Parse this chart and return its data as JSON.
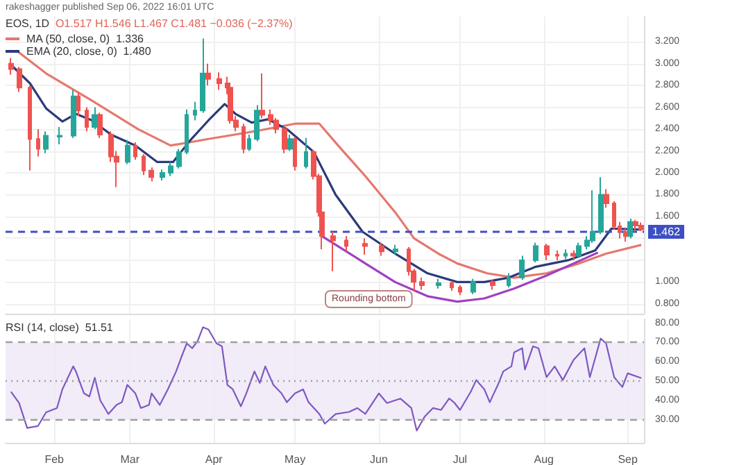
{
  "chart_data": [
    {
      "type": "candlestick",
      "title": "EOS, 1D",
      "subtitle": "O1.517 H1.546 L1.467 C1.481 −0.036 (−2.37%)",
      "annotations": [
        "rakeshagger published Sep 06, 2022 16:01 UTC",
        "Rounding bottom"
      ],
      "xlim": [
        "2022-01-14",
        "2022-09-07"
      ],
      "xticks": [
        {
          "value": "2022-02-01",
          "label": null
        },
        {
          "value": "2022-03-01",
          "label": null
        },
        {
          "value": "2022-04-01",
          "label": null
        },
        {
          "value": "2022-05-01",
          "label": null
        },
        {
          "value": "2022-06-01",
          "label": null
        },
        {
          "value": "2022-07-01",
          "label": null
        },
        {
          "value": "2022-08-01",
          "label": null
        },
        {
          "value": "2022-09-01",
          "label": null
        }
      ],
      "ylim": [
        0.71,
        3.43
      ],
      "yticks": [
        {
          "value": 0.8,
          "label": "0.800"
        },
        {
          "value": 1.0,
          "label": "1.000"
        },
        {
          "value": 1.2,
          "label": null
        },
        {
          "value": 1.4,
          "label": null
        },
        {
          "value": 1.6,
          "label": "1.600"
        },
        {
          "value": 1.8,
          "label": "1.800"
        },
        {
          "value": 2.0,
          "label": "2.000"
        },
        {
          "value": 2.2,
          "label": "2.200"
        },
        {
          "value": 2.4,
          "label": "2.400"
        },
        {
          "value": 2.6,
          "label": "2.600"
        },
        {
          "value": 2.8,
          "label": "2.800"
        },
        {
          "value": 3.0,
          "label": "3.000"
        },
        {
          "value": 3.2,
          "label": "3.200"
        }
      ],
      "tick_labels": "y",
      "grid": true,
      "legend": "top left",
      "ref_lines": [
        {
          "axis": "y",
          "value": 1.462,
          "label": "1.462",
          "color": "#3d4fc4",
          "line_style": "dashed"
        }
      ],
      "series": [
        {
          "colors": [
            "#ef5350",
            "#ef5350",
            "#ef5350",
            "#ef5350",
            "#26a69a",
            "#26a69a",
            "#26a69a",
            "#ef5350",
            "#ef5350",
            "#26a69a",
            "#ef5350",
            "#ef5350",
            "#ef5350",
            "#26a69a",
            "#ef5350",
            "#ef5350",
            "#ef5350",
            "#26a69a",
            "#26a69a",
            "#26a69a",
            "#26a69a",
            "#26a69a",
            "#26a69a",
            "#ef5350",
            "#ef5350",
            "#ef5350",
            "#ef5350",
            "#ef5350",
            "#ef5350",
            "#26a69a",
            "#26a69a",
            "#ef5350",
            "#ef5350",
            "#ef5350",
            "#ef5350",
            "#26a69a",
            "#ef5350",
            "#26a69a",
            "#ef5350",
            "#ef5350",
            "#ef5350",
            "#ef5350",
            "#ef5350",
            "#ef5350",
            "#ef5350",
            "#26a69a",
            "#ef5350",
            "#ef5350",
            "#ef5350",
            "#26a69a",
            "#ef5350",
            "#ef5350",
            "#26a69a",
            "#ef5350",
            "#26a69a",
            "#26a69a",
            "#26a69a",
            "#ef5350",
            "#ef5350",
            "#26a69a",
            "#ef5350",
            "#26a69a",
            "#26a69a",
            "#26a69a",
            "#26a69a",
            "#ef5350",
            "#ef5350",
            "#ef5350",
            "#ef5350",
            "#26a69a",
            "#ef5350",
            "#ef5350"
          ],
          "x": [
            "2022-01-16",
            "2022-01-19",
            "2022-01-23",
            "2022-01-26",
            "2022-01-29",
            "2022-02-03",
            "2022-02-08",
            "2022-02-10",
            "2022-02-13",
            "2022-02-16",
            "2022-02-18",
            "2022-02-22",
            "2022-02-24",
            "2022-02-28",
            "2022-03-03",
            "2022-03-06",
            "2022-03-09",
            "2022-03-13",
            "2022-03-16",
            "2022-03-19",
            "2022-03-22",
            "2022-03-25",
            "2022-03-28",
            "2022-03-30",
            "2022-04-03",
            "2022-04-06",
            "2022-04-07",
            "2022-04-09",
            "2022-04-12",
            "2022-04-14",
            "2022-04-17",
            "2022-04-19",
            "2022-04-22",
            "2022-04-24",
            "2022-04-27",
            "2022-04-29",
            "2022-05-01",
            "2022-05-05",
            "2022-05-08",
            "2022-05-10",
            "2022-05-11",
            "2022-05-15",
            "2022-05-20",
            "2022-05-27",
            "2022-06-02",
            "2022-06-07",
            "2022-06-12",
            "2022-06-14",
            "2022-06-17",
            "2022-06-23",
            "2022-06-28",
            "2022-07-01",
            "2022-07-06",
            "2022-07-13",
            "2022-07-19",
            "2022-07-24",
            "2022-07-29",
            "2022-08-02",
            "2022-08-06",
            "2022-08-09",
            "2022-08-12",
            "2022-08-14",
            "2022-08-17",
            "2022-08-19",
            "2022-08-22",
            "2022-08-24",
            "2022-08-27",
            "2022-08-29",
            "2022-08-31",
            "2022-09-02",
            "2022-09-04",
            "2022-09-06"
          ],
          "ohlc": [
            [
              3.0,
              3.05,
              2.9,
              2.95
            ],
            [
              2.95,
              2.97,
              2.74,
              2.78
            ],
            [
              2.78,
              2.8,
              2.02,
              2.31
            ],
            [
              2.31,
              2.4,
              2.15,
              2.22
            ],
            [
              2.22,
              2.38,
              2.18,
              2.34
            ],
            [
              2.33,
              2.42,
              2.26,
              2.34
            ],
            [
              2.34,
              2.76,
              2.32,
              2.7
            ],
            [
              2.7,
              2.74,
              2.52,
              2.57
            ],
            [
              2.57,
              2.6,
              2.38,
              2.42
            ],
            [
              2.42,
              2.6,
              2.4,
              2.53
            ],
            [
              2.53,
              2.55,
              2.32,
              2.35
            ],
            [
              2.35,
              2.38,
              2.1,
              2.15
            ],
            [
              2.15,
              2.2,
              1.87,
              2.1
            ],
            [
              2.1,
              2.3,
              2.08,
              2.25
            ],
            [
              2.25,
              2.28,
              2.12,
              2.15
            ],
            [
              2.15,
              2.17,
              1.98,
              2.02
            ],
            [
              2.02,
              2.05,
              1.92,
              1.96
            ],
            [
              1.96,
              2.03,
              1.93,
              2.0
            ],
            [
              2.0,
              2.1,
              1.97,
              2.06
            ],
            [
              2.06,
              2.22,
              2.04,
              2.19
            ],
            [
              2.19,
              2.58,
              2.17,
              2.53
            ],
            [
              2.53,
              2.65,
              2.48,
              2.57
            ],
            [
              2.57,
              3.23,
              2.55,
              2.91
            ],
            [
              2.91,
              3.0,
              2.8,
              2.86
            ],
            [
              2.86,
              2.92,
              2.76,
              2.82
            ],
            [
              2.82,
              2.88,
              2.72,
              2.78
            ],
            [
              2.78,
              2.8,
              2.45,
              2.48
            ],
            [
              2.48,
              2.52,
              2.38,
              2.42
            ],
            [
              2.42,
              2.45,
              2.18,
              2.22
            ],
            [
              2.22,
              2.35,
              2.2,
              2.31
            ],
            [
              2.31,
              2.62,
              2.29,
              2.57
            ],
            [
              2.57,
              2.91,
              2.5,
              2.53
            ],
            [
              2.53,
              2.58,
              2.44,
              2.48
            ],
            [
              2.48,
              2.5,
              2.36,
              2.4
            ],
            [
              2.4,
              2.42,
              2.18,
              2.22
            ],
            [
              2.22,
              2.35,
              2.2,
              2.31
            ],
            [
              2.31,
              2.33,
              2.02,
              2.06
            ],
            [
              2.06,
              2.32,
              2.04,
              2.19
            ],
            [
              2.19,
              2.21,
              1.94,
              1.97
            ],
            [
              1.97,
              1.99,
              1.6,
              1.64
            ],
            [
              1.64,
              1.66,
              1.3,
              1.42
            ],
            [
              1.42,
              1.46,
              1.1,
              1.38
            ],
            [
              1.38,
              1.42,
              1.28,
              1.33
            ],
            [
              1.35,
              1.4,
              1.25,
              1.33
            ],
            [
              1.33,
              1.36,
              1.24,
              1.28
            ],
            [
              1.28,
              1.34,
              1.25,
              1.3
            ],
            [
              1.3,
              1.32,
              1.06,
              1.1
            ],
            [
              1.1,
              1.12,
              0.92,
              1.0
            ],
            [
              1.0,
              1.04,
              0.93,
              0.97
            ],
            [
              0.97,
              1.03,
              0.94,
              0.99
            ],
            [
              0.99,
              1.01,
              0.92,
              0.95
            ],
            [
              0.95,
              0.97,
              0.88,
              0.91
            ],
            [
              0.91,
              1.03,
              0.89,
              1.0
            ],
            [
              1.0,
              1.02,
              0.93,
              0.97
            ],
            [
              0.97,
              1.08,
              0.95,
              1.04
            ],
            [
              1.04,
              1.24,
              1.02,
              1.2
            ],
            [
              1.2,
              1.36,
              1.18,
              1.33
            ],
            [
              1.33,
              1.35,
              1.2,
              1.25
            ],
            [
              1.25,
              1.29,
              1.2,
              1.24
            ],
            [
              1.24,
              1.3,
              1.21,
              1.26
            ],
            [
              1.26,
              1.29,
              1.2,
              1.24
            ],
            [
              1.24,
              1.36,
              1.22,
              1.33
            ],
            [
              1.33,
              1.42,
              1.3,
              1.38
            ],
            [
              1.38,
              1.84,
              1.36,
              1.46
            ],
            [
              1.46,
              1.96,
              1.44,
              1.8
            ],
            [
              1.8,
              1.85,
              1.68,
              1.72
            ],
            [
              1.72,
              1.74,
              1.48,
              1.51
            ],
            [
              1.51,
              1.55,
              1.4,
              1.46
            ],
            [
              1.46,
              1.5,
              1.37,
              1.42
            ],
            [
              1.42,
              1.58,
              1.4,
              1.55
            ],
            [
              1.55,
              1.57,
              1.47,
              1.517
            ],
            [
              1.517,
              1.546,
              1.467,
              1.481
            ]
          ]
        },
        {
          "type": "line",
          "name": "MA (50, close, 0)  1.336",
          "color": "#e5786d",
          "x": [
            "2022-01-18",
            "2022-01-29",
            "2022-02-15",
            "2022-03-04",
            "2022-03-16",
            "2022-03-30",
            "2022-04-16",
            "2022-05-01",
            "2022-05-10",
            "2022-05-18",
            "2022-05-27",
            "2022-06-07",
            "2022-06-14",
            "2022-06-23",
            "2022-06-30",
            "2022-07-11",
            "2022-07-21",
            "2022-08-02",
            "2022-08-14",
            "2022-08-24",
            "2022-09-06"
          ],
          "values": [
            3.12,
            2.91,
            2.66,
            2.4,
            2.25,
            2.31,
            2.38,
            2.45,
            2.45,
            2.22,
            1.97,
            1.64,
            1.4,
            1.26,
            1.17,
            1.08,
            1.04,
            1.08,
            1.17,
            1.26,
            1.34
          ]
        },
        {
          "type": "line",
          "name": "EMA (20, close, 0)  1.480",
          "color": "#2b3a7a",
          "x": [
            "2022-01-16",
            "2022-01-23",
            "2022-01-29",
            "2022-02-04",
            "2022-02-09",
            "2022-02-15",
            "2022-02-22",
            "2022-03-03",
            "2022-03-11",
            "2022-03-17",
            "2022-03-23",
            "2022-03-30",
            "2022-04-05",
            "2022-04-09",
            "2022-04-15",
            "2022-04-21",
            "2022-04-28",
            "2022-05-08",
            "2022-05-16",
            "2022-05-26",
            "2022-06-07",
            "2022-06-19",
            "2022-06-30",
            "2022-07-10",
            "2022-07-19",
            "2022-07-29",
            "2022-08-10",
            "2022-08-20",
            "2022-08-26",
            "2022-09-06"
          ],
          "values": [
            2.99,
            2.82,
            2.59,
            2.47,
            2.54,
            2.48,
            2.35,
            2.25,
            2.1,
            2.1,
            2.29,
            2.48,
            2.63,
            2.54,
            2.46,
            2.49,
            2.4,
            2.19,
            1.8,
            1.46,
            1.26,
            1.08,
            1.0,
            1.0,
            1.04,
            1.14,
            1.2,
            1.29,
            1.49,
            1.48
          ]
        },
        {
          "type": "line",
          "color": "#a040c0",
          "x": [
            "2022-05-11",
            "2022-05-27",
            "2022-06-07",
            "2022-06-19",
            "2022-06-30",
            "2022-07-10",
            "2022-07-21",
            "2022-08-02",
            "2022-08-12",
            "2022-08-21"
          ],
          "values": [
            1.42,
            1.17,
            1.0,
            0.87,
            0.82,
            0.85,
            0.94,
            1.06,
            1.17,
            1.27
          ]
        }
      ]
    },
    {
      "type": "line",
      "title": "RSI (14, close)  51.51",
      "xlim": [
        "2022-01-14",
        "2022-09-07"
      ],
      "xticks": [
        {
          "value": "2022-02-01",
          "label": "Feb"
        },
        {
          "value": "2022-03-01",
          "label": "Mar"
        },
        {
          "value": "2022-04-01",
          "label": "Apr"
        },
        {
          "value": "2022-05-01",
          "label": "May"
        },
        {
          "value": "2022-06-01",
          "label": "Jun"
        },
        {
          "value": "2022-07-01",
          "label": "Jul"
        },
        {
          "value": "2022-08-01",
          "label": "Aug"
        },
        {
          "value": "2022-09-01",
          "label": "Sep"
        }
      ],
      "ylim": [
        18,
        82
      ],
      "yticks": [
        {
          "value": 30,
          "label": "30.00"
        },
        {
          "value": 40,
          "label": "40.00"
        },
        {
          "value": 50,
          "label": "50.00"
        },
        {
          "value": 60,
          "label": "60.00"
        },
        {
          "value": 70,
          "label": "70.00"
        },
        {
          "value": 80,
          "label": "80.00"
        }
      ],
      "grid": "x",
      "bands": [
        {
          "axis": "y",
          "from": 30,
          "to": 70,
          "color": "#ede7f6"
        }
      ],
      "ref_lines": [
        {
          "axis": "y",
          "value": 70,
          "color": "#9e9e9e",
          "line_style": "dashed"
        },
        {
          "axis": "y",
          "value": 50,
          "color": "#9e9e9e",
          "line_style": "dotted"
        },
        {
          "axis": "y",
          "value": 30,
          "color": "#9e9e9e",
          "line_style": "dashed"
        }
      ],
      "series": [
        {
          "color": "#7e57c2",
          "x": [
            "2022-01-16",
            "2022-01-19",
            "2022-01-22",
            "2022-01-26",
            "2022-01-29",
            "2022-02-02",
            "2022-02-04",
            "2022-02-08",
            "2022-02-09",
            "2022-02-12",
            "2022-02-14",
            "2022-02-16",
            "2022-02-18",
            "2022-02-21",
            "2022-02-24",
            "2022-02-26",
            "2022-02-28",
            "2022-03-03",
            "2022-03-05",
            "2022-03-08",
            "2022-03-09",
            "2022-03-12",
            "2022-03-15",
            "2022-03-18",
            "2022-03-20",
            "2022-03-22",
            "2022-03-24",
            "2022-03-26",
            "2022-03-28",
            "2022-03-30",
            "2022-04-02",
            "2022-04-04",
            "2022-04-06",
            "2022-04-08",
            "2022-04-11",
            "2022-04-13",
            "2022-04-16",
            "2022-04-18",
            "2022-04-20",
            "2022-04-23",
            "2022-04-26",
            "2022-04-28",
            "2022-05-01",
            "2022-05-04",
            "2022-05-06",
            "2022-05-10",
            "2022-05-12",
            "2022-05-16",
            "2022-05-21",
            "2022-05-24",
            "2022-05-27",
            "2022-06-01",
            "2022-06-04",
            "2022-06-09",
            "2022-06-13",
            "2022-06-15",
            "2022-06-18",
            "2022-06-21",
            "2022-06-24",
            "2022-06-27",
            "2022-06-29",
            "2022-07-01",
            "2022-07-05",
            "2022-07-07",
            "2022-07-10",
            "2022-07-12",
            "2022-07-15",
            "2022-07-17",
            "2022-07-20",
            "2022-07-21",
            "2022-07-24",
            "2022-07-25",
            "2022-07-28",
            "2022-07-30",
            "2022-08-02",
            "2022-08-05",
            "2022-08-08",
            "2022-08-12",
            "2022-08-16",
            "2022-08-18",
            "2022-08-22",
            "2022-08-24",
            "2022-08-27",
            "2022-08-30",
            "2022-09-01",
            "2022-09-06"
          ],
          "values": [
            44.5,
            38.6,
            25.7,
            26.7,
            33.8,
            36,
            45.7,
            57.6,
            55,
            43.6,
            42,
            51.7,
            40,
            32.9,
            37.6,
            39,
            48,
            43.6,
            36,
            37.6,
            43.6,
            37.6,
            45.7,
            54.8,
            62.4,
            69.5,
            67,
            70.7,
            77.9,
            76.7,
            69.5,
            68,
            48,
            45.7,
            36.9,
            43.6,
            55,
            49,
            57.6,
            48,
            43.6,
            39,
            43.6,
            45.7,
            39,
            32.9,
            27.9,
            32.9,
            34,
            36,
            33,
            43.6,
            38.6,
            40.9,
            36,
            24.3,
            31.7,
            36,
            35,
            41,
            38.6,
            35,
            44.5,
            50.5,
            45.7,
            39,
            48,
            55,
            57.6,
            64.8,
            67,
            56,
            68,
            67,
            52,
            57.6,
            50.5,
            61,
            67,
            52,
            72,
            69.5,
            52,
            46.9,
            54,
            51.5
          ]
        }
      ]
    }
  ]
}
